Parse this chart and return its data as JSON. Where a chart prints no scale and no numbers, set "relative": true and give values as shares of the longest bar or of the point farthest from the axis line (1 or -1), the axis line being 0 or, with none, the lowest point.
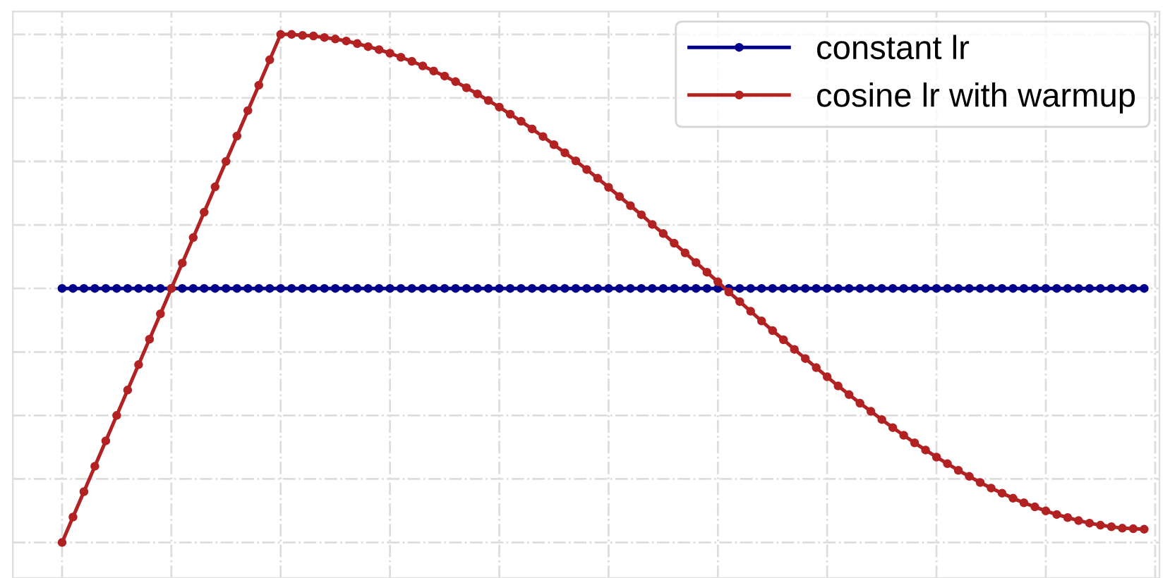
{
  "chart_data": {
    "type": "line",
    "relative": true,
    "grid": true,
    "legend": "top right",
    "marker": "circle",
    "categories": [
      null,
      null,
      null,
      null,
      null,
      null,
      null,
      null,
      null,
      null,
      null,
      null,
      null,
      null,
      null,
      null,
      null,
      null,
      null,
      null,
      null,
      null,
      null,
      null,
      null,
      null,
      null,
      null,
      null,
      null,
      null,
      null,
      null,
      null,
      null,
      null,
      null,
      null,
      null,
      null,
      null,
      null,
      null,
      null,
      null,
      null,
      null,
      null,
      null,
      null,
      null,
      null,
      null,
      null,
      null,
      null,
      null,
      null,
      null,
      null,
      null,
      null,
      null,
      null,
      null,
      null,
      null,
      null,
      null,
      null,
      null,
      null,
      null,
      null,
      null,
      null,
      null,
      null,
      null,
      null,
      null,
      null,
      null,
      null,
      null,
      null,
      null,
      null,
      null,
      null,
      null,
      null,
      null,
      null,
      null,
      null,
      null,
      null,
      null,
      null
    ],
    "series": [
      {
        "name": "constant lr",
        "color": "#00008b",
        "values": [
          0.5,
          0.5,
          0.5,
          0.5,
          0.5,
          0.5,
          0.5,
          0.5,
          0.5,
          0.5,
          0.5,
          0.5,
          0.5,
          0.5,
          0.5,
          0.5,
          0.5,
          0.5,
          0.5,
          0.5,
          0.5,
          0.5,
          0.5,
          0.5,
          0.5,
          0.5,
          0.5,
          0.5,
          0.5,
          0.5,
          0.5,
          0.5,
          0.5,
          0.5,
          0.5,
          0.5,
          0.5,
          0.5,
          0.5,
          0.5,
          0.5,
          0.5,
          0.5,
          0.5,
          0.5,
          0.5,
          0.5,
          0.5,
          0.5,
          0.5,
          0.5,
          0.5,
          0.5,
          0.5,
          0.5,
          0.5,
          0.5,
          0.5,
          0.5,
          0.5,
          0.5,
          0.5,
          0.5,
          0.5,
          0.5,
          0.5,
          0.5,
          0.5,
          0.5,
          0.5,
          0.5,
          0.5,
          0.5,
          0.5,
          0.5,
          0.5,
          0.5,
          0.5,
          0.5,
          0.5,
          0.5,
          0.5,
          0.5,
          0.5,
          0.5,
          0.5,
          0.5,
          0.5,
          0.5,
          0.5,
          0.5,
          0.5,
          0.5,
          0.5,
          0.5,
          0.5,
          0.5,
          0.5,
          0.5,
          0.5
        ]
      },
      {
        "name": "cosine lr with warmup",
        "color": "#b22222",
        "values": [
          0,
          0.05,
          0.1,
          0.15,
          0.2,
          0.25,
          0.3,
          0.35,
          0.4,
          0.45,
          0.5,
          0.55,
          0.6,
          0.65,
          0.7,
          0.75,
          0.8,
          0.85,
          0.9,
          0.95,
          1.0,
          1.0,
          0.998,
          0.997,
          0.994,
          0.991,
          0.987,
          0.982,
          0.976,
          0.97,
          0.963,
          0.955,
          0.947,
          0.938,
          0.928,
          0.918,
          0.907,
          0.895,
          0.883,
          0.87,
          0.857,
          0.843,
          0.829,
          0.814,
          0.799,
          0.783,
          0.767,
          0.751,
          0.734,
          0.717,
          0.699,
          0.681,
          0.663,
          0.645,
          0.626,
          0.608,
          0.589,
          0.57,
          0.551,
          0.532,
          0.513,
          0.493,
          0.474,
          0.455,
          0.436,
          0.417,
          0.399,
          0.38,
          0.362,
          0.344,
          0.326,
          0.308,
          0.291,
          0.274,
          0.258,
          0.242,
          0.226,
          0.211,
          0.196,
          0.182,
          0.168,
          0.155,
          0.142,
          0.13,
          0.118,
          0.107,
          0.097,
          0.087,
          0.078,
          0.07,
          0.062,
          0.055,
          0.049,
          0.043,
          0.038,
          0.034,
          0.031,
          0.028,
          0.027,
          0.026
        ]
      }
    ]
  }
}
